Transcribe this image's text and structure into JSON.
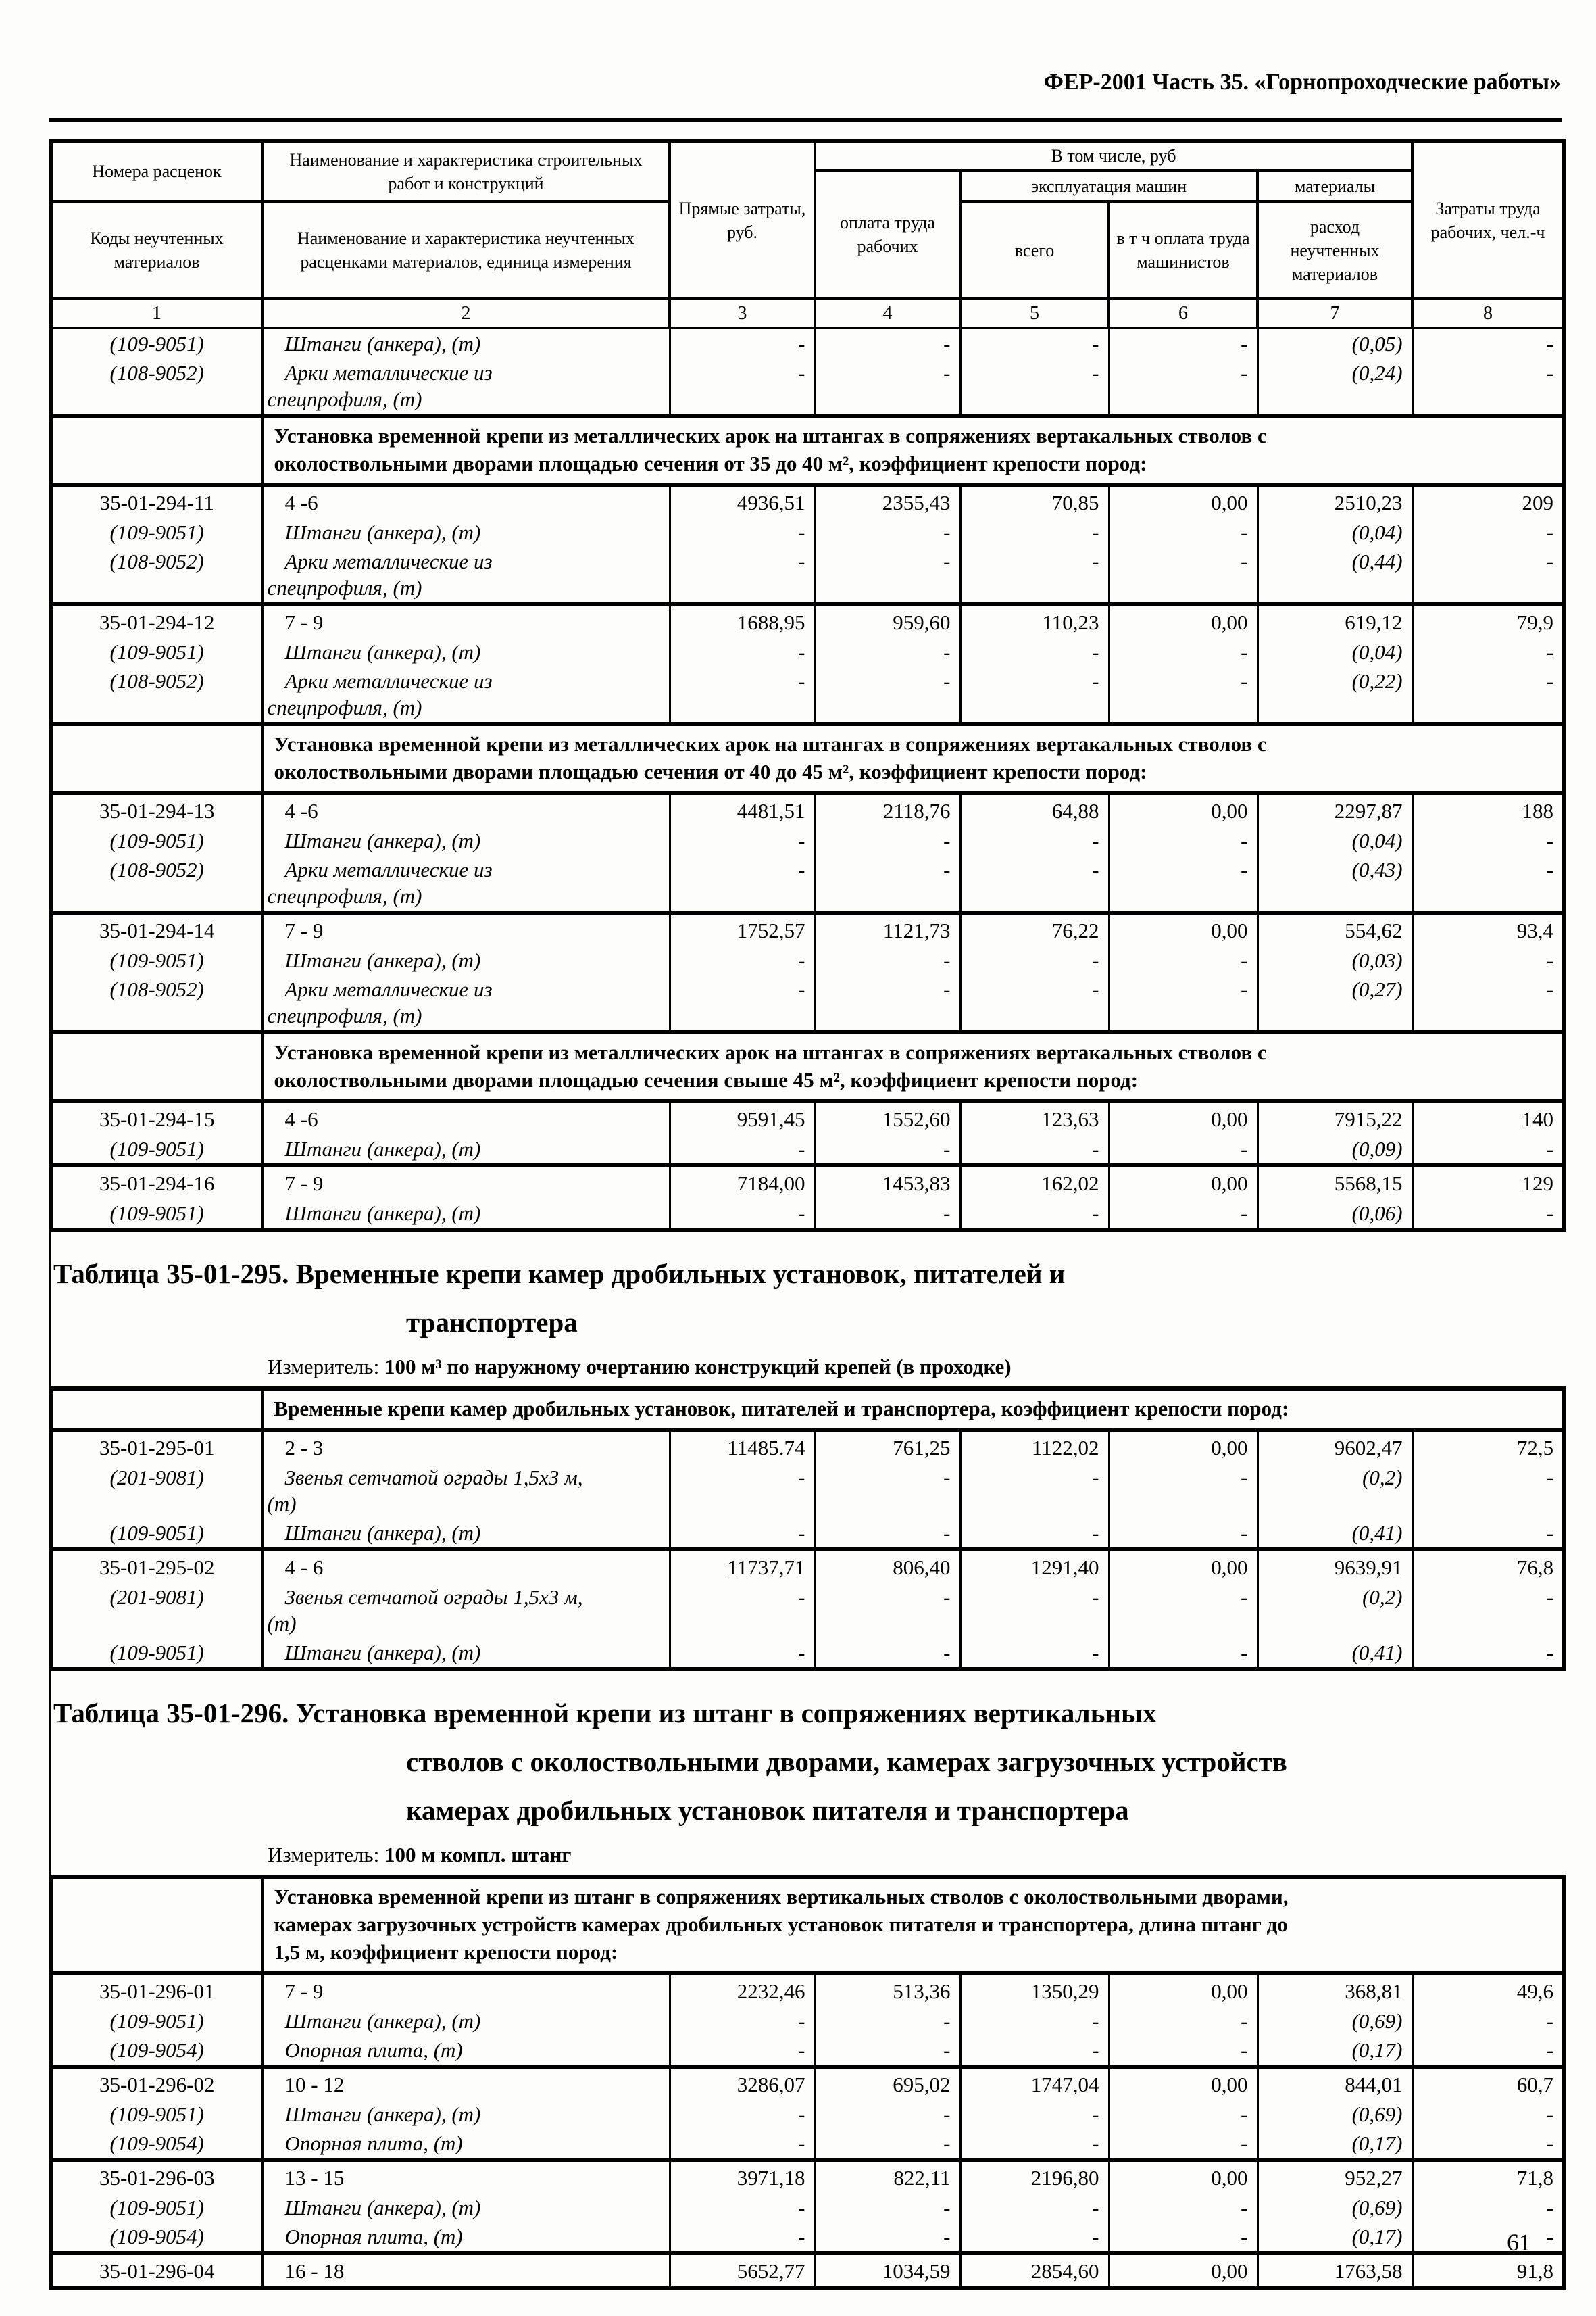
{
  "page": {
    "header": "ФЕР-2001 Часть 35. «Горнопроходческие работы»",
    "number": "61"
  },
  "columns": {
    "c1_top": "Номера расценок",
    "c1_bottom": "Коды неучтенных материалов",
    "c2_top": "Наименование и характеристика строительных работ и конструкций",
    "c2_bottom": "Наименование и характеристика неучтенных расценками материалов, единица измерения",
    "c3": "Прямые затраты, руб.",
    "group_total": "В том числе, руб",
    "c4": "оплата труда рабочих",
    "group_machines": "эксплуатация машин",
    "c5": "всего",
    "c6": "в т ч оплата труда машинистов",
    "group_materials": "материалы",
    "c7": "расход неучтенных материалов",
    "c8": "Затраты труда рабочих, чел.-ч",
    "numbers": [
      "1",
      "2",
      "3",
      "4",
      "5",
      "6",
      "7",
      "8"
    ]
  },
  "table1": {
    "rows": [
      {
        "t": "m",
        "c1": "(109-9051)",
        "c2": "Штанги (анкера), (т)",
        "c3": "-",
        "c4": "-",
        "c5": "-",
        "c6": "-",
        "c7": "(0,05)",
        "c8": "-"
      },
      {
        "t": "m",
        "c1": "(108-9052)",
        "c2": "Арки металлические из\nспецпрофиля, (т)",
        "c3": "-",
        "c4": "-",
        "c5": "-",
        "c6": "-",
        "c7": "(0,24)",
        "c8": "-"
      },
      {
        "t": "s",
        "text": "Установка временной крепи из металлических арок на штангах в сопряжениях вертакальных стволов с\nоколоствольными дворами площадью сечения от 35 до 40 м², коэффициент крепости пород:"
      },
      {
        "t": "r",
        "c1": "35-01-294-11",
        "c2": "4 -6",
        "c3": "4936,51",
        "c4": "2355,43",
        "c5": "70,85",
        "c6": "0,00",
        "c7": "2510,23",
        "c8": "209"
      },
      {
        "t": "m",
        "c1": "(109-9051)",
        "c2": "Штанги (анкера), (т)",
        "c3": "-",
        "c4": "-",
        "c5": "-",
        "c6": "-",
        "c7": "(0,04)",
        "c8": "-"
      },
      {
        "t": "m",
        "c1": "(108-9052)",
        "c2": "Арки металлические из\nспецпрофиля, (т)",
        "c3": "-",
        "c4": "-",
        "c5": "-",
        "c6": "-",
        "c7": "(0,44)",
        "c8": "-"
      },
      {
        "t": "r",
        "c1": "35-01-294-12",
        "c2": "7 - 9",
        "c3": "1688,95",
        "c4": "959,60",
        "c5": "110,23",
        "c6": "0,00",
        "c7": "619,12",
        "c8": "79,9"
      },
      {
        "t": "m",
        "c1": "(109-9051)",
        "c2": "Штанги (анкера), (т)",
        "c3": "-",
        "c4": "-",
        "c5": "-",
        "c6": "-",
        "c7": "(0,04)",
        "c8": "-"
      },
      {
        "t": "m",
        "c1": "(108-9052)",
        "c2": "Арки металлические из\nспецпрофиля, (т)",
        "c3": "-",
        "c4": "-",
        "c5": "-",
        "c6": "-",
        "c7": "(0,22)",
        "c8": "-"
      },
      {
        "t": "s",
        "text": "Установка временной крепи из металлических арок на штангах в сопряжениях вертакальных стволов с\nоколоствольными дворами площадью сечения от 40 до 45 м², коэффициент крепости пород:"
      },
      {
        "t": "r",
        "c1": "35-01-294-13",
        "c2": "4 -6",
        "c3": "4481,51",
        "c4": "2118,76",
        "c5": "64,88",
        "c6": "0,00",
        "c7": "2297,87",
        "c8": "188"
      },
      {
        "t": "m",
        "c1": "(109-9051)",
        "c2": "Штанги (анкера), (т)",
        "c3": "-",
        "c4": "-",
        "c5": "-",
        "c6": "-",
        "c7": "(0,04)",
        "c8": "-"
      },
      {
        "t": "m",
        "c1": "(108-9052)",
        "c2": "Арки металлические из\nспецпрофиля, (т)",
        "c3": "-",
        "c4": "-",
        "c5": "-",
        "c6": "-",
        "c7": "(0,43)",
        "c8": "-"
      },
      {
        "t": "r",
        "c1": "35-01-294-14",
        "c2": "7 - 9",
        "c3": "1752,57",
        "c4": "1121,73",
        "c5": "76,22",
        "c6": "0,00",
        "c7": "554,62",
        "c8": "93,4"
      },
      {
        "t": "m",
        "c1": "(109-9051)",
        "c2": "Штанги (анкера), (т)",
        "c3": "-",
        "c4": "-",
        "c5": "-",
        "c6": "-",
        "c7": "(0,03)",
        "c8": "-"
      },
      {
        "t": "m",
        "c1": "(108-9052)",
        "c2": "Арки металлические из\nспецпрофиля, (т)",
        "c3": "-",
        "c4": "-",
        "c5": "-",
        "c6": "-",
        "c7": "(0,27)",
        "c8": "-"
      },
      {
        "t": "s",
        "text": "Установка временной крепи из металлических арок на штангах в сопряжениях вертакальных стволов с\nоколоствольными дворами площадью сечения свыше 45 м², коэффициент крепости пород:"
      },
      {
        "t": "r",
        "c1": "35-01-294-15",
        "c2": "4 -6",
        "c3": "9591,45",
        "c4": "1552,60",
        "c5": "123,63",
        "c6": "0,00",
        "c7": "7915,22",
        "c8": "140"
      },
      {
        "t": "m",
        "c1": "(109-9051)",
        "c2": "Штанги (анкера), (т)",
        "c3": "-",
        "c4": "-",
        "c5": "-",
        "c6": "-",
        "c7": "(0,09)",
        "c8": "-"
      },
      {
        "t": "r",
        "c1": "35-01-294-16",
        "c2": "7 - 9",
        "c3": "7184,00",
        "c4": "1453,83",
        "c5": "162,02",
        "c6": "0,00",
        "c7": "5568,15",
        "c8": "129"
      },
      {
        "t": "m",
        "c1": "(109-9051)",
        "c2": "Штанги (анкера), (т)",
        "c3": "-",
        "c4": "-",
        "c5": "-",
        "c6": "-",
        "c7": "(0,06)",
        "c8": "-"
      }
    ]
  },
  "block295": {
    "title": "Таблица 35-01-295. Временные крепи камер дробильных установок, питателей и\nтранспортера",
    "meter_label": "Измеритель:",
    "meter_value": "100 м³ по наружному очертанию конструкций крепей (в проходке)"
  },
  "table2": {
    "rows": [
      {
        "t": "s",
        "text": "Временные крепи камер дробильных установок, питателей и транспортера, коэффициент крепости пород:"
      },
      {
        "t": "r",
        "c1": "35-01-295-01",
        "c2": "2 - 3",
        "c3": "11485.74",
        "c4": "761,25",
        "c5": "1122,02",
        "c6": "0,00",
        "c7": "9602,47",
        "c8": "72,5"
      },
      {
        "t": "m",
        "c1": "(201-9081)",
        "c2": "Звенья сетчатой ограды 1,5х3 м,\n(т)",
        "c3": "-",
        "c4": "-",
        "c5": "-",
        "c6": "-",
        "c7": "(0,2)",
        "c8": "-"
      },
      {
        "t": "m",
        "c1": "(109-9051)",
        "c2": "Штанги (анкера), (т)",
        "c3": "-",
        "c4": "-",
        "c5": "-",
        "c6": "-",
        "c7": "(0,41)",
        "c8": "-"
      },
      {
        "t": "r",
        "c1": "35-01-295-02",
        "c2": "4 - 6",
        "c3": "11737,71",
        "c4": "806,40",
        "c5": "1291,40",
        "c6": "0,00",
        "c7": "9639,91",
        "c8": "76,8"
      },
      {
        "t": "m",
        "c1": "(201-9081)",
        "c2": "Звенья сетчатой ограды 1,5х3 м,\n(т)",
        "c3": "-",
        "c4": "-",
        "c5": "-",
        "c6": "-",
        "c7": "(0,2)",
        "c8": "-"
      },
      {
        "t": "m",
        "c1": "(109-9051)",
        "c2": "Штанги (анкера), (т)",
        "c3": "-",
        "c4": "-",
        "c5": "-",
        "c6": "-",
        "c7": "(0,41)",
        "c8": "-"
      }
    ]
  },
  "block296": {
    "title": "Таблица 35-01-296. Установка временной крепи из штанг в сопряжениях вертикальных\nстволов с околоствольными дворами, камерах загрузочных устройств\nкамерах дробильных установок питателя и транспортера",
    "meter_label": "Измеритель:",
    "meter_value": "100 м компл. штанг"
  },
  "table3": {
    "rows": [
      {
        "t": "s",
        "text": "Установка временной крепи из штанг в сопряжениях вертикальных стволов с околоствольными дворами,\nкамерах загрузочных устройств камерах дробильных установок питателя и транспортера, длина штанг до\n1,5 м, коэффициент крепости пород:"
      },
      {
        "t": "r",
        "c1": "35-01-296-01",
        "c2": "7 - 9",
        "c3": "2232,46",
        "c4": "513,36",
        "c5": "1350,29",
        "c6": "0,00",
        "c7": "368,81",
        "c8": "49,6"
      },
      {
        "t": "m",
        "c1": "(109-9051)",
        "c2": "Штанги (анкера), (т)",
        "c3": "-",
        "c4": "-",
        "c5": "-",
        "c6": "-",
        "c7": "(0,69)",
        "c8": "-"
      },
      {
        "t": "m",
        "c1": "(109-9054)",
        "c2": "Опорная плита, (т)",
        "c3": "-",
        "c4": "-",
        "c5": "-",
        "c6": "-",
        "c7": "(0,17)",
        "c8": "-"
      },
      {
        "t": "r",
        "c1": "35-01-296-02",
        "c2": "10 - 12",
        "c3": "3286,07",
        "c4": "695,02",
        "c5": "1747,04",
        "c6": "0,00",
        "c7": "844,01",
        "c8": "60,7"
      },
      {
        "t": "m",
        "c1": "(109-9051)",
        "c2": "Штанги (анкера), (т)",
        "c3": "-",
        "c4": "-",
        "c5": "-",
        "c6": "-",
        "c7": "(0,69)",
        "c8": "-"
      },
      {
        "t": "m",
        "c1": "(109-9054)",
        "c2": "Опорная плита, (т)",
        "c3": "-",
        "c4": "-",
        "c5": "-",
        "c6": "-",
        "c7": "(0,17)",
        "c8": "-"
      },
      {
        "t": "r",
        "c1": "35-01-296-03",
        "c2": "13 - 15",
        "c3": "3971,18",
        "c4": "822,11",
        "c5": "2196,80",
        "c6": "0,00",
        "c7": "952,27",
        "c8": "71,8"
      },
      {
        "t": "m",
        "c1": "(109-9051)",
        "c2": "Штанги (анкера), (т)",
        "c3": "-",
        "c4": "-",
        "c5": "-",
        "c6": "-",
        "c7": "(0,69)",
        "c8": "-"
      },
      {
        "t": "m",
        "c1": "(109-9054)",
        "c2": "Опорная плита, (т)",
        "c3": "-",
        "c4": "-",
        "c5": "-",
        "c6": "-",
        "c7": "(0,17)",
        "c8": "-"
      },
      {
        "t": "r",
        "c1": "35-01-296-04",
        "c2": "16 - 18",
        "c3": "5652,77",
        "c4": "1034,59",
        "c5": "2854,60",
        "c6": "0,00",
        "c7": "1763,58",
        "c8": "91,8"
      }
    ]
  }
}
